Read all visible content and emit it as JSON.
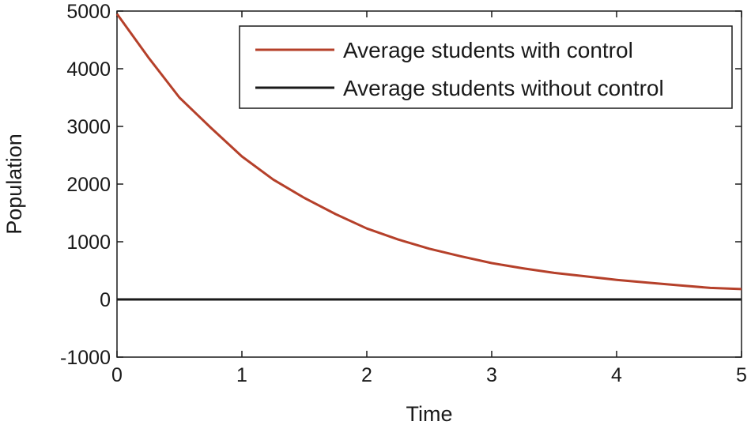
{
  "chart_data": {
    "type": "line",
    "title": "",
    "xlabel": "Time",
    "ylabel": "Population",
    "xlim": [
      0,
      5
    ],
    "ylim": [
      -1000,
      5000
    ],
    "xticks": [
      0,
      1,
      2,
      3,
      4,
      5
    ],
    "yticks": [
      -1000,
      0,
      1000,
      2000,
      3000,
      4000,
      5000
    ],
    "xtick_labels": [
      "0",
      "1",
      "2",
      "3",
      "4",
      "5"
    ],
    "ytick_labels": [
      "-1000",
      "0",
      "1000",
      "2000",
      "3000",
      "4000",
      "5000"
    ],
    "grid": false,
    "legend_position": "top-right",
    "series": [
      {
        "name": "Average students with control",
        "color": "#b5402a",
        "x": [
          0,
          0.25,
          0.5,
          0.75,
          1,
          1.25,
          1.5,
          1.75,
          2,
          2.25,
          2.5,
          2.75,
          3,
          3.25,
          3.5,
          3.75,
          4,
          4.25,
          4.5,
          4.75,
          5
        ],
        "y": [
          4950,
          4200,
          3500,
          2980,
          2480,
          2080,
          1760,
          1480,
          1230,
          1040,
          880,
          750,
          630,
          540,
          460,
          400,
          340,
          290,
          245,
          200,
          180
        ]
      },
      {
        "name": "Average students without control",
        "color": "#1a1a1a",
        "x": [
          0,
          5
        ],
        "y": [
          0,
          0
        ]
      }
    ]
  }
}
